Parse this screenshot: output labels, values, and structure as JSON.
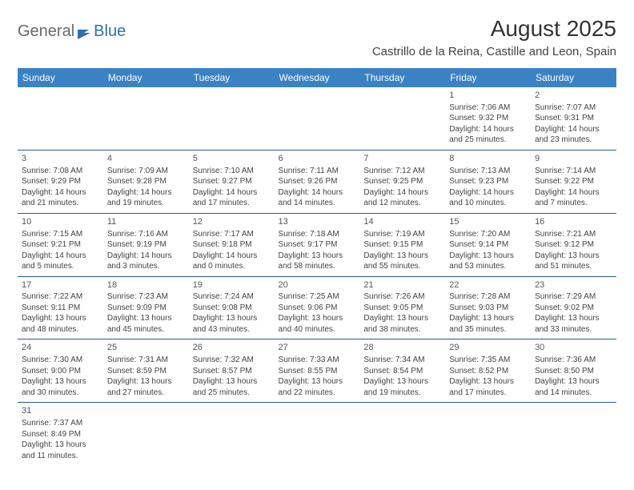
{
  "logo": {
    "text1": "General",
    "text2": "Blue",
    "color_general": "#6a6a6a",
    "color_blue": "#2f6fb0",
    "flag_color": "#2f6fb0"
  },
  "header": {
    "month_title": "August 2025",
    "location": "Castrillo de la Reina, Castille and Leon, Spain"
  },
  "styling": {
    "header_bg": "#3b82c4",
    "header_fg": "#ffffff",
    "row_border": "#2a5aa0",
    "body_text": "#444444",
    "page_bg": "#ffffff",
    "title_fontsize": 28,
    "location_fontsize": 15,
    "dayheader_fontsize": 12,
    "cell_fontsize": 10
  },
  "day_headers": [
    "Sunday",
    "Monday",
    "Tuesday",
    "Wednesday",
    "Thursday",
    "Friday",
    "Saturday"
  ],
  "weeks": [
    [
      null,
      null,
      null,
      null,
      null,
      {
        "n": "1",
        "sr": "Sunrise: 7:06 AM",
        "ss": "Sunset: 9:32 PM",
        "dl1": "Daylight: 14 hours",
        "dl2": "and 25 minutes."
      },
      {
        "n": "2",
        "sr": "Sunrise: 7:07 AM",
        "ss": "Sunset: 9:31 PM",
        "dl1": "Daylight: 14 hours",
        "dl2": "and 23 minutes."
      }
    ],
    [
      {
        "n": "3",
        "sr": "Sunrise: 7:08 AM",
        "ss": "Sunset: 9:29 PM",
        "dl1": "Daylight: 14 hours",
        "dl2": "and 21 minutes."
      },
      {
        "n": "4",
        "sr": "Sunrise: 7:09 AM",
        "ss": "Sunset: 9:28 PM",
        "dl1": "Daylight: 14 hours",
        "dl2": "and 19 minutes."
      },
      {
        "n": "5",
        "sr": "Sunrise: 7:10 AM",
        "ss": "Sunset: 9:27 PM",
        "dl1": "Daylight: 14 hours",
        "dl2": "and 17 minutes."
      },
      {
        "n": "6",
        "sr": "Sunrise: 7:11 AM",
        "ss": "Sunset: 9:26 PM",
        "dl1": "Daylight: 14 hours",
        "dl2": "and 14 minutes."
      },
      {
        "n": "7",
        "sr": "Sunrise: 7:12 AM",
        "ss": "Sunset: 9:25 PM",
        "dl1": "Daylight: 14 hours",
        "dl2": "and 12 minutes."
      },
      {
        "n": "8",
        "sr": "Sunrise: 7:13 AM",
        "ss": "Sunset: 9:23 PM",
        "dl1": "Daylight: 14 hours",
        "dl2": "and 10 minutes."
      },
      {
        "n": "9",
        "sr": "Sunrise: 7:14 AM",
        "ss": "Sunset: 9:22 PM",
        "dl1": "Daylight: 14 hours",
        "dl2": "and 7 minutes."
      }
    ],
    [
      {
        "n": "10",
        "sr": "Sunrise: 7:15 AM",
        "ss": "Sunset: 9:21 PM",
        "dl1": "Daylight: 14 hours",
        "dl2": "and 5 minutes."
      },
      {
        "n": "11",
        "sr": "Sunrise: 7:16 AM",
        "ss": "Sunset: 9:19 PM",
        "dl1": "Daylight: 14 hours",
        "dl2": "and 3 minutes."
      },
      {
        "n": "12",
        "sr": "Sunrise: 7:17 AM",
        "ss": "Sunset: 9:18 PM",
        "dl1": "Daylight: 14 hours",
        "dl2": "and 0 minutes."
      },
      {
        "n": "13",
        "sr": "Sunrise: 7:18 AM",
        "ss": "Sunset: 9:17 PM",
        "dl1": "Daylight: 13 hours",
        "dl2": "and 58 minutes."
      },
      {
        "n": "14",
        "sr": "Sunrise: 7:19 AM",
        "ss": "Sunset: 9:15 PM",
        "dl1": "Daylight: 13 hours",
        "dl2": "and 55 minutes."
      },
      {
        "n": "15",
        "sr": "Sunrise: 7:20 AM",
        "ss": "Sunset: 9:14 PM",
        "dl1": "Daylight: 13 hours",
        "dl2": "and 53 minutes."
      },
      {
        "n": "16",
        "sr": "Sunrise: 7:21 AM",
        "ss": "Sunset: 9:12 PM",
        "dl1": "Daylight: 13 hours",
        "dl2": "and 51 minutes."
      }
    ],
    [
      {
        "n": "17",
        "sr": "Sunrise: 7:22 AM",
        "ss": "Sunset: 9:11 PM",
        "dl1": "Daylight: 13 hours",
        "dl2": "and 48 minutes."
      },
      {
        "n": "18",
        "sr": "Sunrise: 7:23 AM",
        "ss": "Sunset: 9:09 PM",
        "dl1": "Daylight: 13 hours",
        "dl2": "and 45 minutes."
      },
      {
        "n": "19",
        "sr": "Sunrise: 7:24 AM",
        "ss": "Sunset: 9:08 PM",
        "dl1": "Daylight: 13 hours",
        "dl2": "and 43 minutes."
      },
      {
        "n": "20",
        "sr": "Sunrise: 7:25 AM",
        "ss": "Sunset: 9:06 PM",
        "dl1": "Daylight: 13 hours",
        "dl2": "and 40 minutes."
      },
      {
        "n": "21",
        "sr": "Sunrise: 7:26 AM",
        "ss": "Sunset: 9:05 PM",
        "dl1": "Daylight: 13 hours",
        "dl2": "and 38 minutes."
      },
      {
        "n": "22",
        "sr": "Sunrise: 7:28 AM",
        "ss": "Sunset: 9:03 PM",
        "dl1": "Daylight: 13 hours",
        "dl2": "and 35 minutes."
      },
      {
        "n": "23",
        "sr": "Sunrise: 7:29 AM",
        "ss": "Sunset: 9:02 PM",
        "dl1": "Daylight: 13 hours",
        "dl2": "and 33 minutes."
      }
    ],
    [
      {
        "n": "24",
        "sr": "Sunrise: 7:30 AM",
        "ss": "Sunset: 9:00 PM",
        "dl1": "Daylight: 13 hours",
        "dl2": "and 30 minutes."
      },
      {
        "n": "25",
        "sr": "Sunrise: 7:31 AM",
        "ss": "Sunset: 8:59 PM",
        "dl1": "Daylight: 13 hours",
        "dl2": "and 27 minutes."
      },
      {
        "n": "26",
        "sr": "Sunrise: 7:32 AM",
        "ss": "Sunset: 8:57 PM",
        "dl1": "Daylight: 13 hours",
        "dl2": "and 25 minutes."
      },
      {
        "n": "27",
        "sr": "Sunrise: 7:33 AM",
        "ss": "Sunset: 8:55 PM",
        "dl1": "Daylight: 13 hours",
        "dl2": "and 22 minutes."
      },
      {
        "n": "28",
        "sr": "Sunrise: 7:34 AM",
        "ss": "Sunset: 8:54 PM",
        "dl1": "Daylight: 13 hours",
        "dl2": "and 19 minutes."
      },
      {
        "n": "29",
        "sr": "Sunrise: 7:35 AM",
        "ss": "Sunset: 8:52 PM",
        "dl1": "Daylight: 13 hours",
        "dl2": "and 17 minutes."
      },
      {
        "n": "30",
        "sr": "Sunrise: 7:36 AM",
        "ss": "Sunset: 8:50 PM",
        "dl1": "Daylight: 13 hours",
        "dl2": "and 14 minutes."
      }
    ],
    [
      {
        "n": "31",
        "sr": "Sunrise: 7:37 AM",
        "ss": "Sunset: 8:49 PM",
        "dl1": "Daylight: 13 hours",
        "dl2": "and 11 minutes."
      },
      null,
      null,
      null,
      null,
      null,
      null
    ]
  ]
}
